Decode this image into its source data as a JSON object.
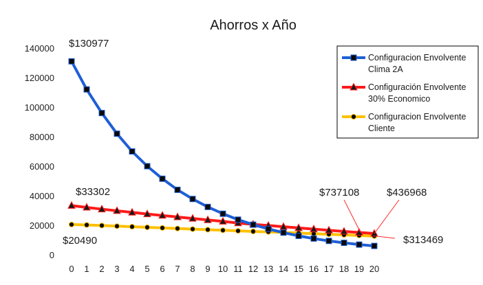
{
  "chart_data": {
    "type": "line",
    "title": "Ahorros x Año",
    "xlabel": "",
    "ylabel": "",
    "x": [
      0,
      1,
      2,
      3,
      4,
      5,
      6,
      7,
      8,
      9,
      10,
      11,
      12,
      13,
      14,
      15,
      16,
      17,
      18,
      19,
      20
    ],
    "ylim": [
      0,
      140000
    ],
    "yticks": [
      0,
      20000,
      40000,
      60000,
      80000,
      100000,
      120000,
      140000
    ],
    "grid": false,
    "legend_position": "top-right",
    "series": [
      {
        "name": "Configuracion Envolvente Clima 2A",
        "color": "#1f5fd6",
        "marker": "square",
        "values": [
          131000,
          112000,
          96000,
          82000,
          70000,
          60000,
          51500,
          44000,
          37800,
          32400,
          27800,
          23800,
          20400,
          17500,
          15000,
          12800,
          11000,
          9400,
          8100,
          6900,
          6000
        ]
      },
      {
        "name": "Configuración Envolvente 30% Economico",
        "color": "#ff1a1a",
        "marker": "triangle",
        "values": [
          33300,
          32100,
          30900,
          29800,
          28700,
          27600,
          26600,
          25600,
          24600,
          23600,
          22600,
          21500,
          20600,
          19800,
          19000,
          18200,
          17400,
          16600,
          15800,
          15100,
          14400
        ]
      },
      {
        "name": "Configuracion Envolvente Cliente",
        "color": "#ffc000",
        "marker": "circle",
        "values": [
          20500,
          20200,
          19800,
          19400,
          19000,
          18600,
          18200,
          17800,
          17400,
          17000,
          16600,
          16200,
          15800,
          15500,
          15100,
          14700,
          14300,
          13900,
          13500,
          13100,
          12700
        ]
      }
    ],
    "annotations": [
      {
        "text": "$130977"
      },
      {
        "text": "$33302"
      },
      {
        "text": "$20490"
      },
      {
        "text": "$737108"
      },
      {
        "text": "$436968"
      },
      {
        "text": "$313469"
      }
    ]
  }
}
